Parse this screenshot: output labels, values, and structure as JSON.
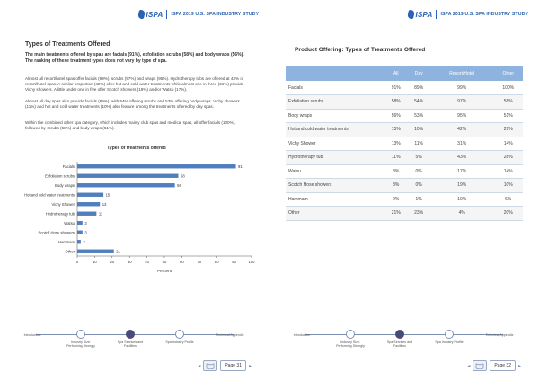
{
  "header": {
    "logo_text": "ISPA",
    "study_title": "ISPA 2019 U.S. SPA INDUSTRY STUDY"
  },
  "left_page": {
    "title": "Types of Treatments Offered",
    "lead": "The main treatments offered by spas are facials (91%), exfoliation scrubs (58%) and body wraps (56%). The ranking of these treatment types does not vary by type of spa.",
    "para1": "Almost all resort/hotel spas offer facials (99%), scrubs (97%) and wraps (95%). Hydrotherapy tubs are offered at 43% of resort/hotel spas. A similar proportion (42%) offer hot and cold water treatments while almost one in three (31%) provide Vichy showers. A little under one in five offer Scotch showers (19%) and/or Watsu (17%).",
    "para2": "Almost all day spas also provide facials (89%), with 54% offering scrubs and 53% offering body wraps. Vichy showers (11%) and hot and cold water treatments (10%) also feature among the treatments offered by day spas.",
    "para3": "Within the combined other spa category, which includes mainly club spas and medical spas, all offer facials (100%), followed by scrubs (58%) and body wraps (51%).",
    "page_number": "Page 31"
  },
  "chart_data": {
    "type": "bar",
    "orientation": "horizontal",
    "title": "Types of treatments offered",
    "xlabel": "Percent",
    "ylabel": "",
    "xlim": [
      0,
      100
    ],
    "xticks": [
      0,
      10,
      20,
      30,
      40,
      50,
      60,
      70,
      80,
      90,
      100
    ],
    "categories": [
      "Facials",
      "Exfoliation scrubs",
      "Body wraps",
      "Hot and cold water treatments",
      "Vichy Shower",
      "Hydrotherapy tub",
      "Watsu",
      "Scotch Hose showers",
      "Hammam",
      "Other"
    ],
    "values": [
      91,
      58,
      56,
      15,
      13,
      11,
      3,
      3,
      2,
      21
    ],
    "bar_color": "#4f7fbf"
  },
  "right_page": {
    "title": "Product Offering: Types of Treatments Offered",
    "table": {
      "headers": [
        "",
        "All",
        "Day",
        "Resort/Hotel",
        "Other"
      ],
      "rows": [
        [
          "Facials",
          "91%",
          "89%",
          "99%",
          "100%"
        ],
        [
          "Exfoliation scrubs",
          "58%",
          "54%",
          "97%",
          "58%"
        ],
        [
          "Body wraps",
          "56%",
          "53%",
          "95%",
          "51%"
        ],
        [
          "Hot and cold water treatments",
          "15%",
          "10%",
          "42%",
          "29%"
        ],
        [
          "Vichy Shower",
          "13%",
          "11%",
          "31%",
          "14%"
        ],
        [
          "Hydrotherapy tub",
          "11%",
          "5%",
          "43%",
          "28%"
        ],
        [
          "Watsu",
          "3%",
          "0%",
          "17%",
          "14%"
        ],
        [
          "Scotch Hose showers",
          "3%",
          "0%",
          "19%",
          "10%"
        ],
        [
          "Hammam",
          "2%",
          "1%",
          "10%",
          "6%"
        ],
        [
          "Other",
          "21%",
          "23%",
          "4%",
          "20%"
        ]
      ]
    },
    "page_number": "Page 32"
  },
  "nav": {
    "items": [
      "Introduction",
      "Industry Size: Performing Strongly",
      "Spa Services and Facilities",
      "Spa Industry Profile",
      "Technical Appendix"
    ],
    "active_index": 2
  }
}
